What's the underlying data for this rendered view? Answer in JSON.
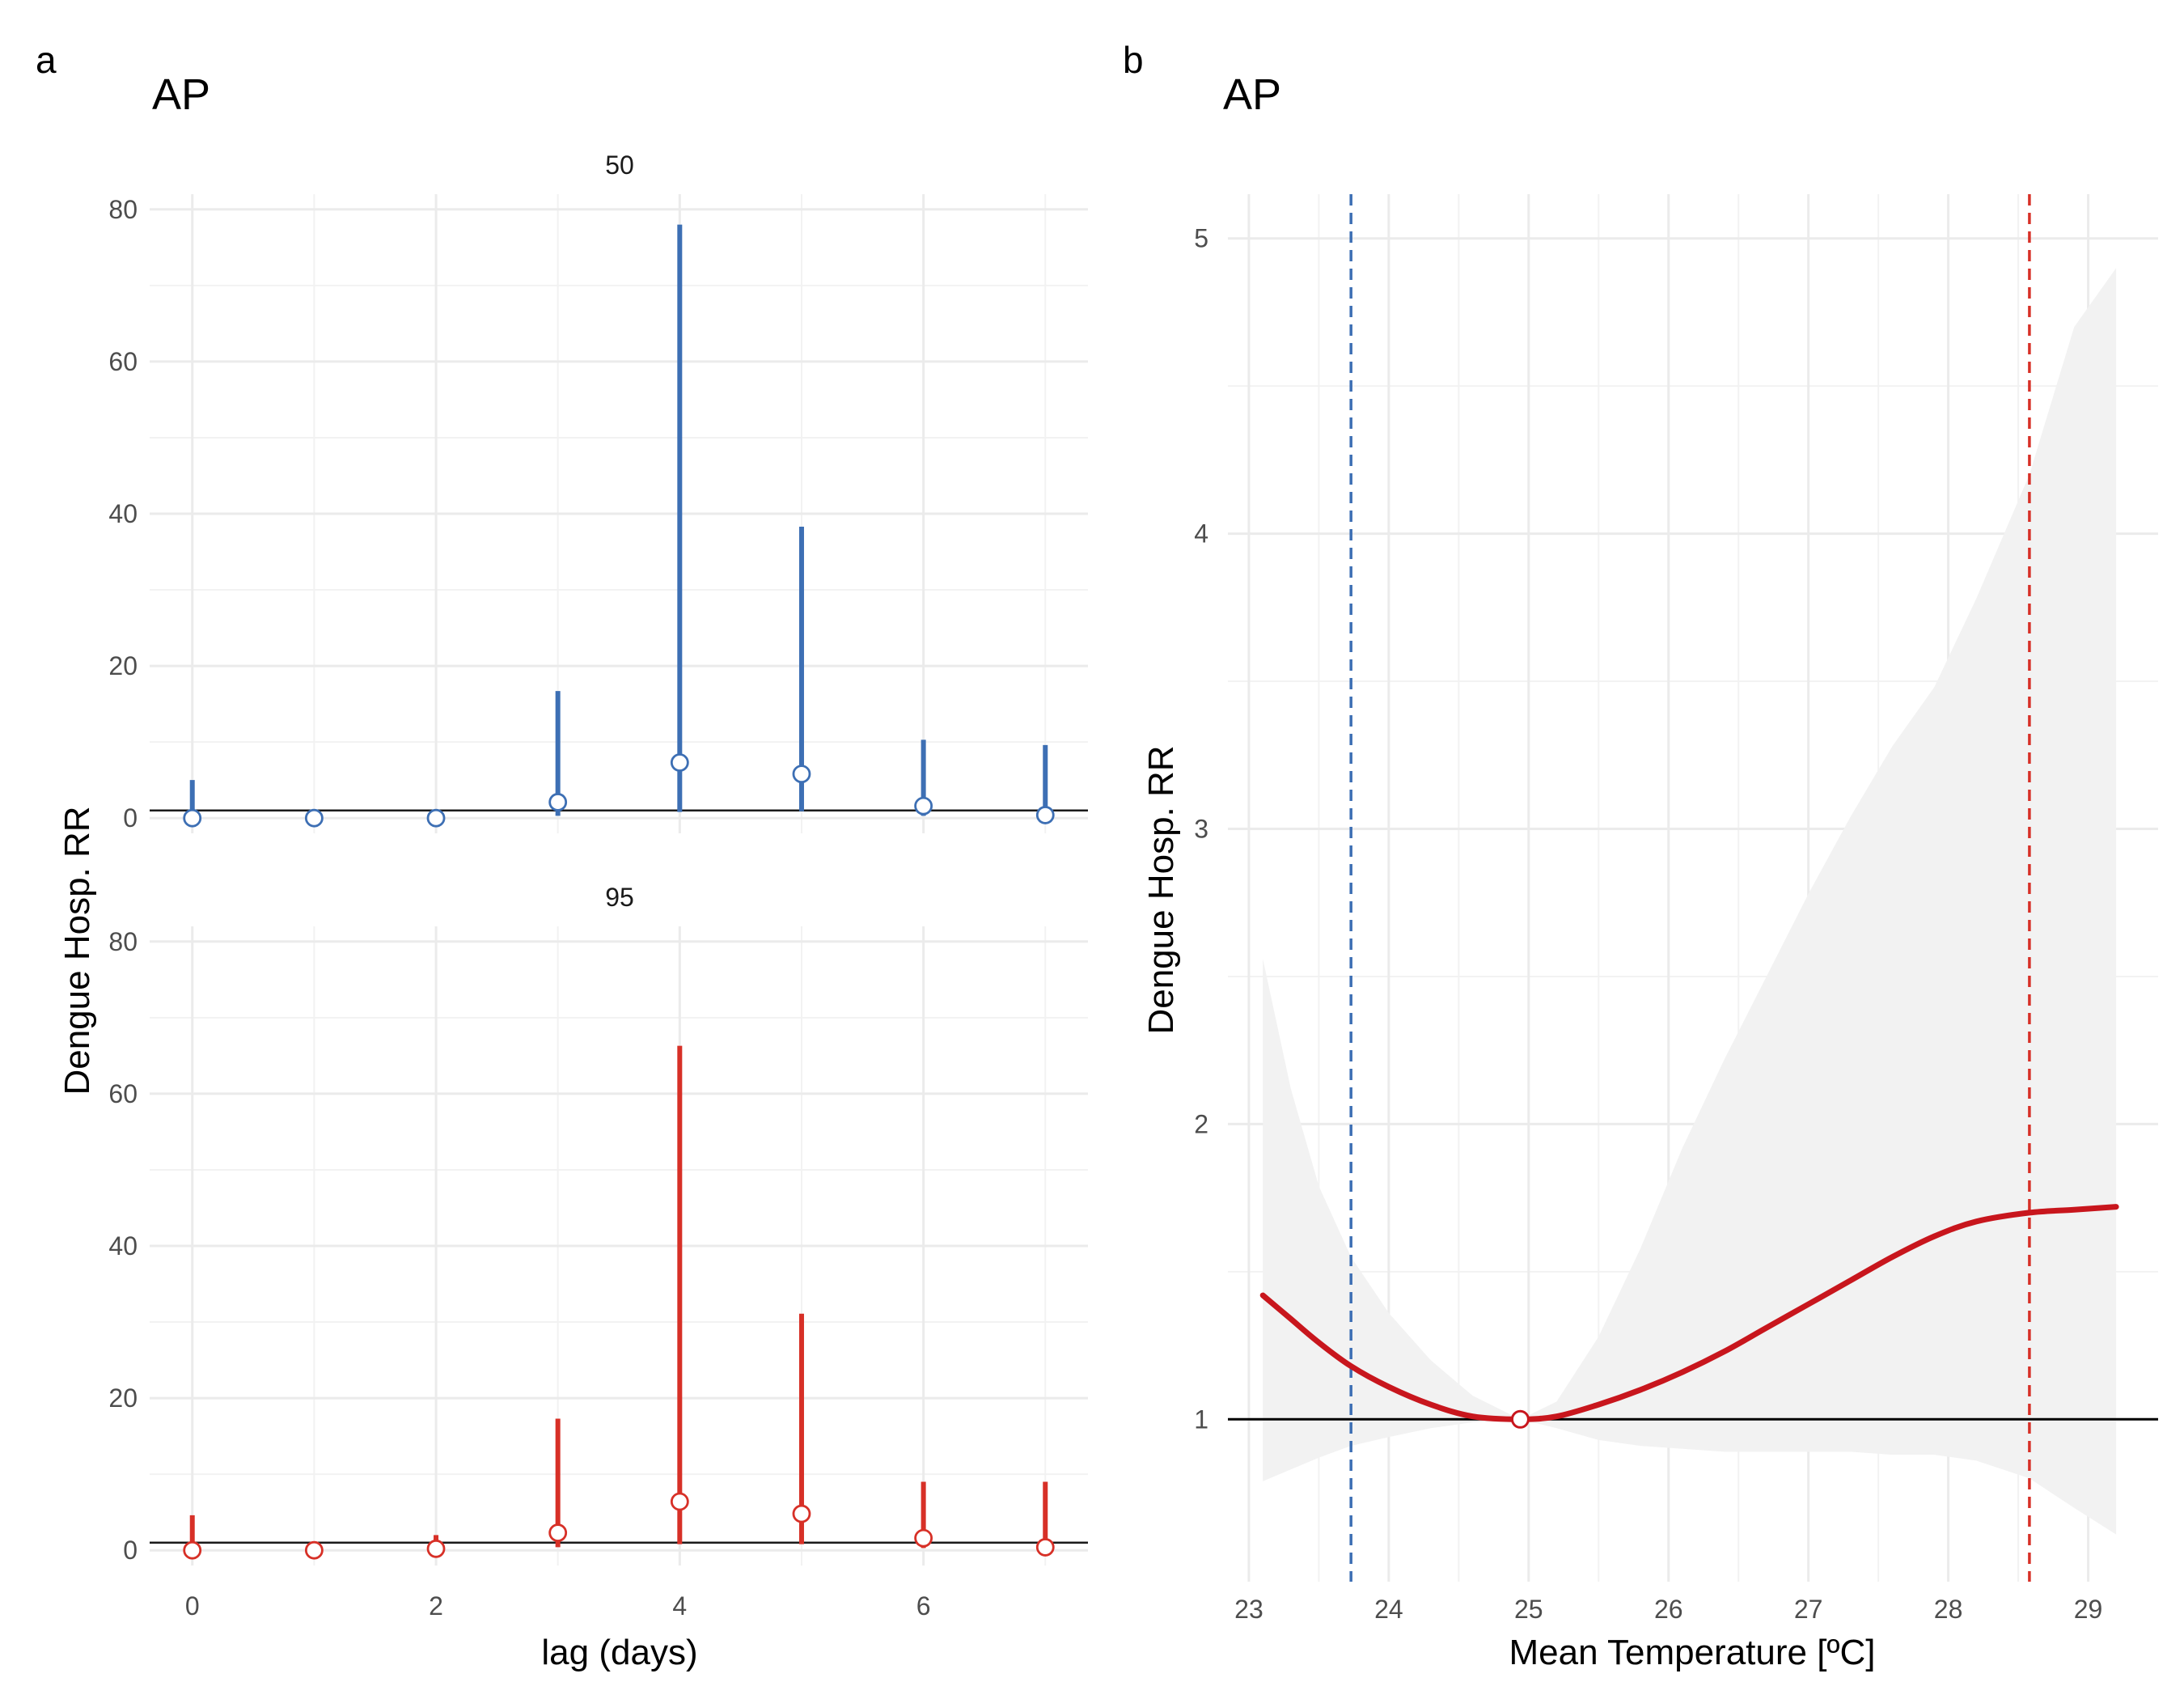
{
  "figure": {
    "panel_a": {
      "letter": "a",
      "title": "AP"
    },
    "panel_b": {
      "letter": "b",
      "title": "AP"
    }
  },
  "chart_data": [
    {
      "type": "scatter",
      "description_kind": "lag-response point estimates with CI bars, faceted",
      "xlabel": "lag (days)",
      "ylabel": "Dengue Hosp. RR",
      "xlim": [
        -0.35,
        7.35
      ],
      "x_ticks": [
        "0",
        "2",
        "4",
        "6"
      ],
      "y_ticks": [
        "0",
        "20",
        "40",
        "60",
        "80"
      ],
      "ylim": [
        -2,
        82
      ],
      "reference_line": 1,
      "facets": [
        {
          "label": "50",
          "color": "#3d6fb4",
          "points": [
            {
              "lag": 0,
              "rr": 0.0,
              "lo": 0.1,
              "hi": 5.0
            },
            {
              "lag": 1,
              "rr": 0.0,
              "lo": 0.0,
              "hi": 0.3
            },
            {
              "lag": 2,
              "rr": 0.0,
              "lo": 0.0,
              "hi": 0.2
            },
            {
              "lag": 3,
              "rr": 2.1,
              "lo": 0.3,
              "hi": 16.7
            },
            {
              "lag": 4,
              "rr": 7.3,
              "lo": 0.8,
              "hi": 78.0
            },
            {
              "lag": 5,
              "rr": 5.8,
              "lo": 0.9,
              "hi": 38.3
            },
            {
              "lag": 6,
              "rr": 1.6,
              "lo": 0.3,
              "hi": 10.3
            },
            {
              "lag": 7,
              "rr": 0.4,
              "lo": 0.0,
              "hi": 9.6
            }
          ]
        },
        {
          "label": "95",
          "color": "#d73027",
          "points": [
            {
              "lag": 0,
              "rr": 0.0,
              "lo": 0.1,
              "hi": 4.6
            },
            {
              "lag": 1,
              "rr": 0.0,
              "lo": 0.0,
              "hi": 0.3
            },
            {
              "lag": 2,
              "rr": 0.2,
              "lo": 0.0,
              "hi": 2.0
            },
            {
              "lag": 3,
              "rr": 2.3,
              "lo": 0.4,
              "hi": 17.3
            },
            {
              "lag": 4,
              "rr": 6.4,
              "lo": 0.8,
              "hi": 66.3
            },
            {
              "lag": 5,
              "rr": 4.8,
              "lo": 0.8,
              "hi": 31.1
            },
            {
              "lag": 6,
              "rr": 1.6,
              "lo": 0.3,
              "hi": 9.0
            },
            {
              "lag": 7,
              "rr": 0.4,
              "lo": 0.0,
              "hi": 9.0
            }
          ]
        }
      ]
    },
    {
      "type": "line",
      "description_kind": "exposure-response curve with confidence band",
      "xlabel": "Mean Temperature [ºC]",
      "ylabel": "Dengue Hosp. RR",
      "xlim": [
        22.85,
        29.5
      ],
      "ylim": [
        0.45,
        5.15
      ],
      "x_ticks": [
        "23",
        "24",
        "25",
        "26",
        "27",
        "28",
        "29"
      ],
      "y_ticks": [
        "1",
        "2",
        "3",
        "4",
        "5"
      ],
      "reference_line": 1,
      "line_color": "#c8161d",
      "band_color": "#f2f2f2",
      "vlines": [
        {
          "x": 23.73,
          "color": "#3d6fb4"
        },
        {
          "x": 28.58,
          "color": "#d73027"
        }
      ],
      "marker": {
        "x": 24.94,
        "y": 1.0
      },
      "curve": {
        "x": [
          23.1,
          23.3,
          23.5,
          23.73,
          24.0,
          24.3,
          24.6,
          24.94,
          25.2,
          25.5,
          25.8,
          26.1,
          26.4,
          26.7,
          27.0,
          27.3,
          27.6,
          27.9,
          28.2,
          28.58,
          28.9,
          29.2
        ],
        "y": [
          1.42,
          1.34,
          1.26,
          1.18,
          1.11,
          1.05,
          1.01,
          1.0,
          1.01,
          1.05,
          1.1,
          1.16,
          1.23,
          1.31,
          1.39,
          1.47,
          1.55,
          1.62,
          1.67,
          1.7,
          1.71,
          1.72
        ],
        "lo": [
          0.79,
          0.83,
          0.87,
          0.91,
          0.94,
          0.97,
          0.99,
          1.0,
          0.97,
          0.93,
          0.91,
          0.9,
          0.89,
          0.89,
          0.89,
          0.89,
          0.88,
          0.88,
          0.86,
          0.8,
          0.7,
          0.61
        ],
        "hi": [
          2.56,
          2.12,
          1.79,
          1.55,
          1.36,
          1.2,
          1.08,
          1.0,
          1.06,
          1.28,
          1.58,
          1.92,
          2.22,
          2.5,
          2.78,
          3.04,
          3.28,
          3.48,
          3.78,
          4.2,
          4.7,
          4.9
        ]
      }
    }
  ]
}
